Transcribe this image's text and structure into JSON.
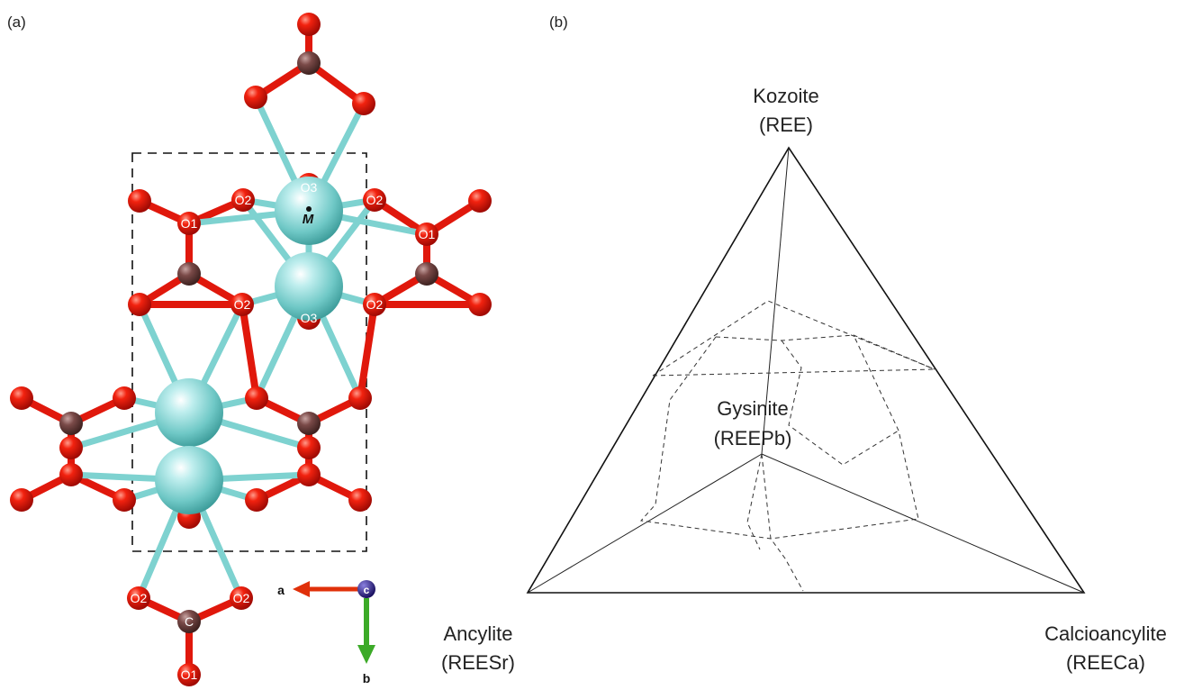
{
  "panel_a": {
    "label": "(a)",
    "atom_labels": {
      "O1": "O1",
      "O2": "O2",
      "O3": "O3",
      "C": "C",
      "M": "M"
    },
    "axes": {
      "a": "a",
      "b": "b",
      "c": "c"
    },
    "colors": {
      "oxygen": "#e0180c",
      "carbon": "#7a4a48",
      "metal": "#7ed2d0",
      "a_axis": "#e0300a",
      "b_axis": "#3caa28",
      "c_axis": "#2a1e8a"
    }
  },
  "panel_b": {
    "label": "(b)",
    "apex_top": {
      "name": "Kozoite",
      "formula": "(REE)"
    },
    "apex_left": {
      "name": "Ancylite",
      "formula": "(REESr)"
    },
    "apex_right": {
      "name": "Calcioancylite",
      "formula": "(REECa)"
    },
    "center": {
      "name": "Gysinite",
      "formula": "(REEPb)"
    }
  }
}
